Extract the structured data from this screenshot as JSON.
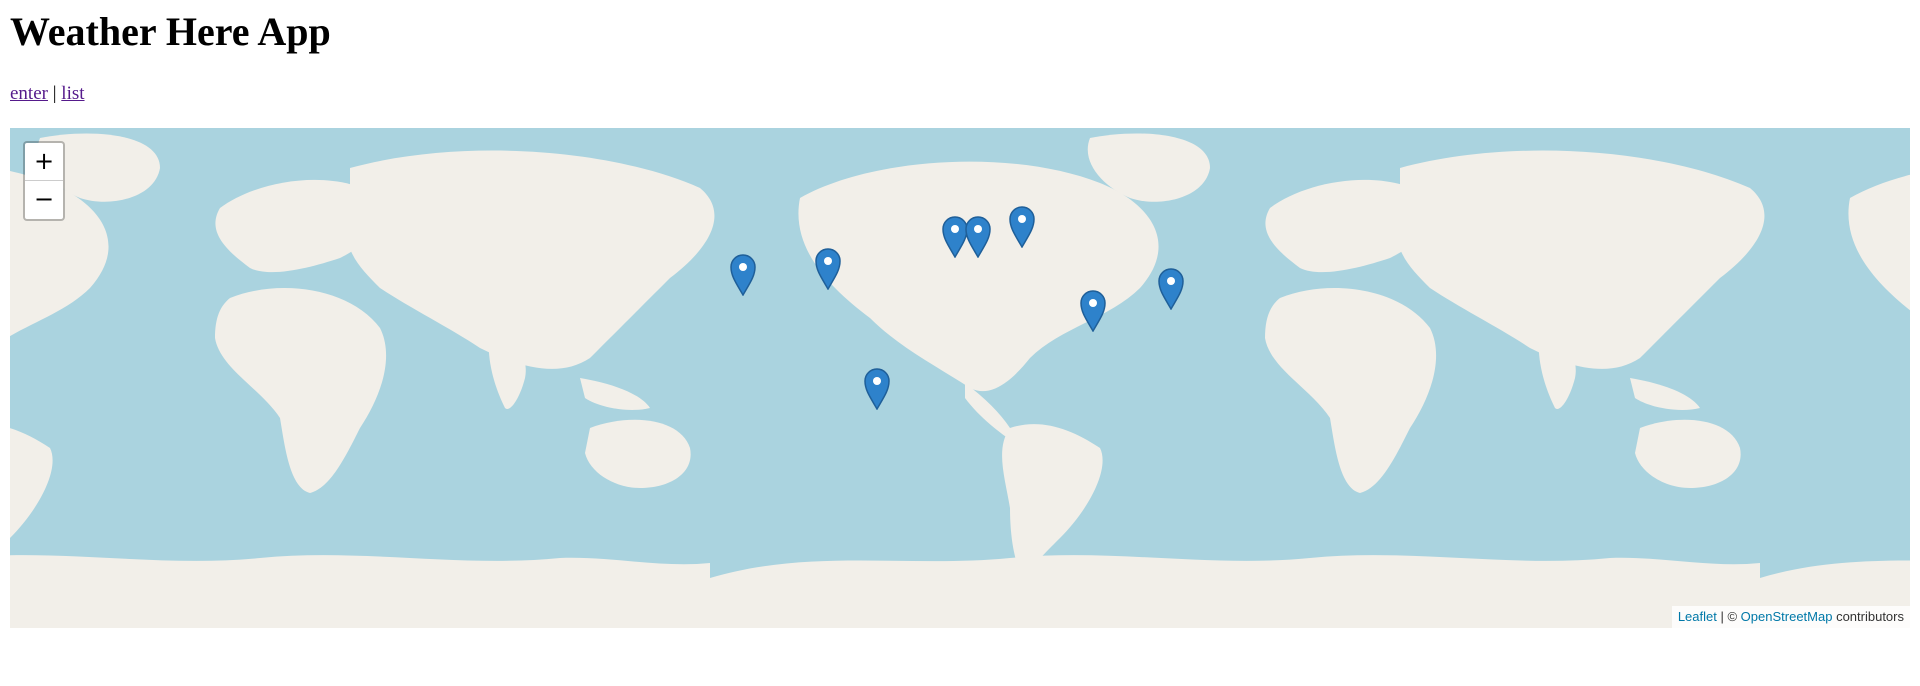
{
  "page": {
    "title": "Weather Here App"
  },
  "nav": {
    "enter": "enter",
    "separator": "|",
    "list": "list"
  },
  "map": {
    "zoom_in": "+",
    "zoom_out": "−",
    "attribution": {
      "leaflet": "Leaflet",
      "sep": " | © ",
      "osm": "OpenStreetMap",
      "suffix": " contributors"
    },
    "colors": {
      "water": "#aad3df",
      "land": "#f2efe9",
      "marker": "#2e82cb"
    },
    "marker_icon": "map-pin-icon"
  }
}
